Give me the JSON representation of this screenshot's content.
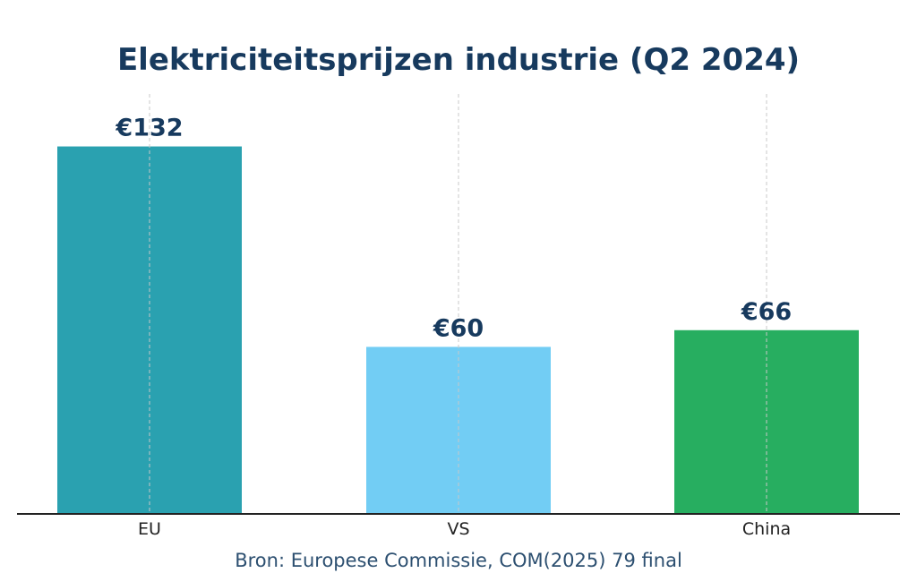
{
  "chart_data": {
    "type": "bar",
    "title": "Elektriciteitsprijzen industrie (Q2 2024)",
    "categories": [
      "EU",
      "VS",
      "China"
    ],
    "values": [
      132,
      60,
      66
    ],
    "data_labels": [
      "€132",
      "€60",
      "€66"
    ],
    "colors": [
      "#2aa1b0",
      "#72cdf4",
      "#27ae60"
    ],
    "xlabel": "",
    "ylabel": "",
    "ylim": [
      0,
      151.8
    ],
    "grid": "vertical dashed",
    "source": "Bron: Europese Commissie, COM(2025) 79 final",
    "title_color": "#173a5e"
  }
}
